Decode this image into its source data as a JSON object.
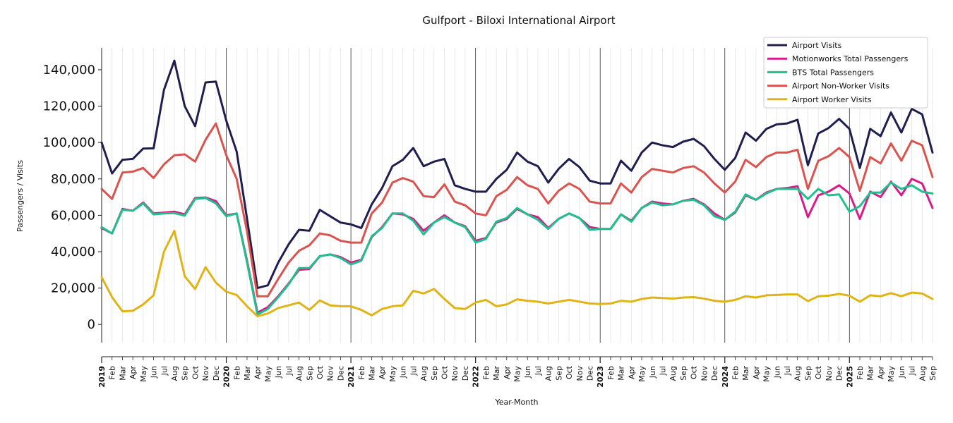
{
  "chart_data": {
    "type": "line",
    "title": "Gulfport - Biloxi International Airport",
    "xlabel": "Year-Month",
    "ylabel": "Passengers / Visits",
    "ylim": [
      -10000,
      152000
    ],
    "yticks": [
      0,
      20000,
      40000,
      60000,
      80000,
      100000,
      120000,
      140000
    ],
    "ytick_labels": [
      "0",
      "20,000",
      "40,000",
      "60,000",
      "80,000",
      "100,000",
      "120,000",
      "140,000"
    ],
    "grid": "vertical monthly gridlines; darker line at each January",
    "legend_position": "top-right",
    "year_labels": [
      "2019",
      "2020",
      "2021",
      "2022",
      "2023",
      "2024",
      "2025"
    ],
    "month_labels": [
      "Feb",
      "Mar",
      "Apr",
      "May",
      "Jun",
      "Jul",
      "Aug",
      "Sep",
      "Oct",
      "Nov",
      "Dec"
    ],
    "x": [
      "2019-01",
      "2019-02",
      "2019-03",
      "2019-04",
      "2019-05",
      "2019-06",
      "2019-07",
      "2019-08",
      "2019-09",
      "2019-10",
      "2019-11",
      "2019-12",
      "2020-01",
      "2020-02",
      "2020-03",
      "2020-04",
      "2020-05",
      "2020-06",
      "2020-07",
      "2020-08",
      "2020-09",
      "2020-10",
      "2020-11",
      "2020-12",
      "2021-01",
      "2021-02",
      "2021-03",
      "2021-04",
      "2021-05",
      "2021-06",
      "2021-07",
      "2021-08",
      "2021-09",
      "2021-10",
      "2021-11",
      "2021-12",
      "2022-01",
      "2022-02",
      "2022-03",
      "2022-04",
      "2022-05",
      "2022-06",
      "2022-07",
      "2022-08",
      "2022-09",
      "2022-10",
      "2022-11",
      "2022-12",
      "2023-01",
      "2023-02",
      "2023-03",
      "2023-04",
      "2023-05",
      "2023-06",
      "2023-07",
      "2023-08",
      "2023-09",
      "2023-10",
      "2023-11",
      "2023-12",
      "2024-01",
      "2024-02",
      "2024-03",
      "2024-04",
      "2024-05",
      "2024-06",
      "2024-07",
      "2024-08",
      "2024-09",
      "2024-10",
      "2024-11",
      "2024-12",
      "2025-01",
      "2025-02",
      "2025-03",
      "2025-04",
      "2025-05",
      "2025-06",
      "2025-07",
      "2025-08",
      "2025-09"
    ],
    "series": [
      {
        "name": "Airport Visits",
        "color": "#1f1f4f",
        "values": [
          100000,
          83000,
          90500,
          91000,
          96700,
          96800,
          129000,
          145000,
          120000,
          109000,
          133000,
          133500,
          112000,
          95000,
          58000,
          20000,
          21500,
          34000,
          44000,
          52000,
          51500,
          63000,
          59500,
          56000,
          55000,
          53000,
          66000,
          75000,
          87000,
          90500,
          97000,
          87000,
          89500,
          91000,
          76500,
          74500,
          73000,
          73000,
          80000,
          85000,
          94500,
          89500,
          87000,
          78000,
          85500,
          91000,
          86500,
          79000,
          77500,
          77500,
          90000,
          84500,
          94500,
          100000,
          98500,
          97500,
          100500,
          102000,
          98000,
          91000,
          85000,
          91500,
          105500,
          101000,
          107500,
          110000,
          110500,
          112500,
          87500,
          105000,
          108000,
          113000,
          107500,
          86000,
          107500,
          103500,
          116500,
          105500,
          118500,
          115500,
          94500
        ]
      },
      {
        "name": "Motionworks Total Passengers",
        "color": "#d81b8b",
        "values": [
          53000,
          50000,
          63500,
          62500,
          67000,
          61000,
          61500,
          62000,
          60500,
          69500,
          69800,
          67800,
          60000,
          61000,
          35000,
          6500,
          9500,
          15500,
          22500,
          30000,
          30500,
          37500,
          38500,
          37000,
          34000,
          35500,
          48000,
          53500,
          61000,
          60500,
          58000,
          51500,
          56000,
          60000,
          56000,
          54000,
          46000,
          47500,
          56000,
          58000,
          63500,
          60500,
          59000,
          53000,
          58000,
          61000,
          58500,
          53500,
          52500,
          52500,
          60500,
          57000,
          64000,
          67500,
          66500,
          66000,
          68000,
          69000,
          66000,
          61000,
          57500,
          61500,
          71000,
          68500,
          72500,
          74500,
          75000,
          76000,
          59000,
          71000,
          73000,
          76500,
          72000,
          58000,
          73000,
          70000,
          78500,
          71000,
          80000,
          77500,
          64000
        ]
      },
      {
        "name": "BTS Total Passengers",
        "color": "#20c08e",
        "values": [
          53500,
          50000,
          63000,
          62500,
          66500,
          60500,
          61000,
          61200,
          59800,
          69000,
          69500,
          66500,
          59500,
          61000,
          34000,
          5500,
          8500,
          15000,
          22000,
          31000,
          31000,
          37500,
          38500,
          36500,
          33000,
          35000,
          48500,
          53000,
          61000,
          61000,
          57000,
          49500,
          56000,
          59000,
          56000,
          53500,
          45000,
          47000,
          56500,
          58500,
          64000,
          60500,
          57500,
          52500,
          58000,
          61000,
          58500,
          52000,
          52500,
          52500,
          60500,
          56500,
          64000,
          67000,
          65500,
          66000,
          68000,
          68500,
          65500,
          59500,
          57500,
          62000,
          71500,
          68500,
          72000,
          74500,
          74500,
          74500,
          69000,
          74500,
          71000,
          71500,
          62000,
          65000,
          72500,
          72500,
          78000,
          74500,
          76500,
          73000,
          72000
        ]
      },
      {
        "name": "Airport Non-Worker Visits",
        "color": "#d9534f",
        "values": [
          74500,
          69000,
          83500,
          84000,
          86000,
          80500,
          88000,
          93000,
          93500,
          89500,
          101500,
          110500,
          93000,
          80000,
          51000,
          15500,
          15500,
          25000,
          34000,
          40500,
          43500,
          50000,
          49000,
          46000,
          45000,
          45000,
          61000,
          67000,
          78000,
          80500,
          78500,
          70500,
          70000,
          77000,
          67500,
          65500,
          61000,
          60000,
          70500,
          74000,
          81000,
          76500,
          74500,
          66500,
          73500,
          77500,
          74500,
          67500,
          66500,
          66500,
          77500,
          72500,
          81000,
          85500,
          84500,
          83500,
          86000,
          87000,
          83500,
          77500,
          72500,
          78500,
          90500,
          86500,
          92000,
          94500,
          94500,
          96000,
          74500,
          90000,
          92500,
          97000,
          92000,
          73500,
          92000,
          88500,
          99500,
          90000,
          101000,
          98500,
          81000
        ]
      },
      {
        "name": "Airport Worker Visits",
        "color": "#e0b416",
        "values": [
          26000,
          15000,
          7200,
          7500,
          11000,
          16000,
          40000,
          51500,
          26500,
          19500,
          31500,
          23000,
          18000,
          16200,
          10000,
          4500,
          6000,
          9000,
          10500,
          12000,
          8000,
          13200,
          10500,
          10000,
          10000,
          8000,
          5000,
          8500,
          10000,
          10500,
          18500,
          17000,
          19500,
          14000,
          9000,
          8500,
          12000,
          13500,
          10000,
          11000,
          13800,
          13000,
          12500,
          11500,
          12500,
          13500,
          12500,
          11500,
          11200,
          11500,
          13000,
          12500,
          14000,
          14800,
          14500,
          14200,
          14800,
          15000,
          14200,
          13000,
          12500,
          13500,
          15500,
          14800,
          16000,
          16200,
          16500,
          16500,
          12800,
          15500,
          15800,
          16800,
          15800,
          12500,
          16000,
          15500,
          17200,
          15500,
          17500,
          17000,
          14000
        ]
      }
    ]
  }
}
